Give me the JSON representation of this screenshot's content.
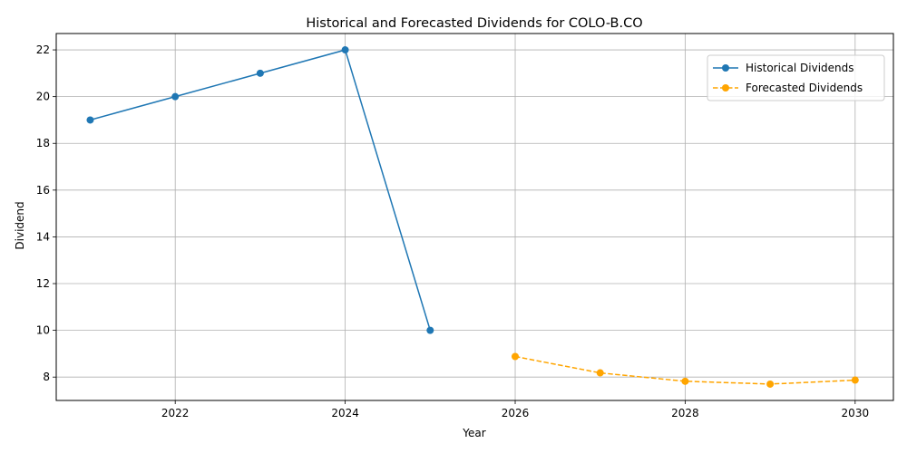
{
  "chart_data": {
    "type": "line",
    "title": "Historical and Forecasted Dividends for COLO-B.CO",
    "xlabel": "Year",
    "ylabel": "Dividend",
    "xlim": [
      2020.6,
      2030.45
    ],
    "ylim": [
      7.0,
      22.7
    ],
    "x_ticks": [
      2022,
      2024,
      2026,
      2028,
      2030
    ],
    "y_ticks": [
      8,
      10,
      12,
      14,
      16,
      18,
      20,
      22
    ],
    "grid": true,
    "legend_position": "top-right",
    "series": [
      {
        "name": "Historical Dividends",
        "color": "#1f77b4",
        "line_style": "solid",
        "marker": "circle",
        "x": [
          2021,
          2022,
          2023,
          2024,
          2025
        ],
        "y": [
          19,
          20,
          21,
          22,
          10
        ]
      },
      {
        "name": "Forecasted Dividends",
        "color": "#ffa500",
        "line_style": "dashed",
        "marker": "circle",
        "x": [
          2026,
          2027,
          2028,
          2029,
          2030
        ],
        "y": [
          8.88,
          8.18,
          7.82,
          7.7,
          7.87
        ]
      }
    ]
  }
}
